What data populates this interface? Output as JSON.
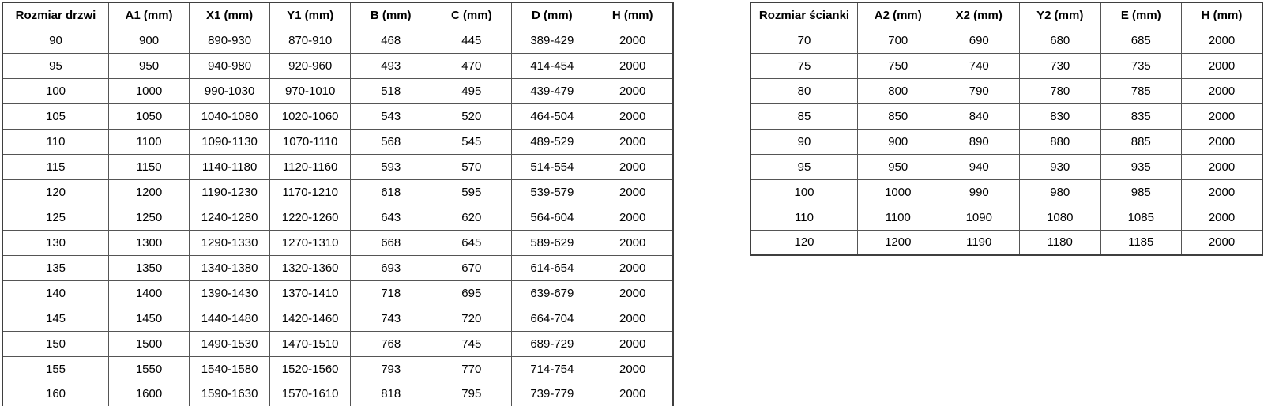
{
  "colors": {
    "background": "#ffffff",
    "text": "#000000",
    "inner_border": "#555555",
    "outer_border": "#3f3f3f"
  },
  "tables": [
    {
      "name": "door-size-table",
      "headers": [
        "Rozmiar drzwi",
        "A1 (mm)",
        "X1 (mm)",
        "Y1 (mm)",
        "B (mm)",
        "C (mm)",
        "D (mm)",
        "H (mm)"
      ],
      "rows": [
        [
          "90",
          "900",
          "890-930",
          "870-910",
          "468",
          "445",
          "389-429",
          "2000"
        ],
        [
          "95",
          "950",
          "940-980",
          "920-960",
          "493",
          "470",
          "414-454",
          "2000"
        ],
        [
          "100",
          "1000",
          "990-1030",
          "970-1010",
          "518",
          "495",
          "439-479",
          "2000"
        ],
        [
          "105",
          "1050",
          "1040-1080",
          "1020-1060",
          "543",
          "520",
          "464-504",
          "2000"
        ],
        [
          "110",
          "1100",
          "1090-1130",
          "1070-1110",
          "568",
          "545",
          "489-529",
          "2000"
        ],
        [
          "115",
          "1150",
          "1140-1180",
          "1120-1160",
          "593",
          "570",
          "514-554",
          "2000"
        ],
        [
          "120",
          "1200",
          "1190-1230",
          "1170-1210",
          "618",
          "595",
          "539-579",
          "2000"
        ],
        [
          "125",
          "1250",
          "1240-1280",
          "1220-1260",
          "643",
          "620",
          "564-604",
          "2000"
        ],
        [
          "130",
          "1300",
          "1290-1330",
          "1270-1310",
          "668",
          "645",
          "589-629",
          "2000"
        ],
        [
          "135",
          "1350",
          "1340-1380",
          "1320-1360",
          "693",
          "670",
          "614-654",
          "2000"
        ],
        [
          "140",
          "1400",
          "1390-1430",
          "1370-1410",
          "718",
          "695",
          "639-679",
          "2000"
        ],
        [
          "145",
          "1450",
          "1440-1480",
          "1420-1460",
          "743",
          "720",
          "664-704",
          "2000"
        ],
        [
          "150",
          "1500",
          "1490-1530",
          "1470-1510",
          "768",
          "745",
          "689-729",
          "2000"
        ],
        [
          "155",
          "1550",
          "1540-1580",
          "1520-1560",
          "793",
          "770",
          "714-754",
          "2000"
        ],
        [
          "160",
          "1600",
          "1590-1630",
          "1570-1610",
          "818",
          "795",
          "739-779",
          "2000"
        ]
      ]
    },
    {
      "name": "wall-size-table",
      "headers": [
        "Rozmiar ścianki",
        "A2 (mm)",
        "X2 (mm)",
        "Y2 (mm)",
        "E (mm)",
        "H (mm)"
      ],
      "rows": [
        [
          "70",
          "700",
          "690",
          "680",
          "685",
          "2000"
        ],
        [
          "75",
          "750",
          "740",
          "730",
          "735",
          "2000"
        ],
        [
          "80",
          "800",
          "790",
          "780",
          "785",
          "2000"
        ],
        [
          "85",
          "850",
          "840",
          "830",
          "835",
          "2000"
        ],
        [
          "90",
          "900",
          "890",
          "880",
          "885",
          "2000"
        ],
        [
          "95",
          "950",
          "940",
          "930",
          "935",
          "2000"
        ],
        [
          "100",
          "1000",
          "990",
          "980",
          "985",
          "2000"
        ],
        [
          "110",
          "1100",
          "1090",
          "1080",
          "1085",
          "2000"
        ],
        [
          "120",
          "1200",
          "1190",
          "1180",
          "1185",
          "2000"
        ]
      ]
    }
  ]
}
